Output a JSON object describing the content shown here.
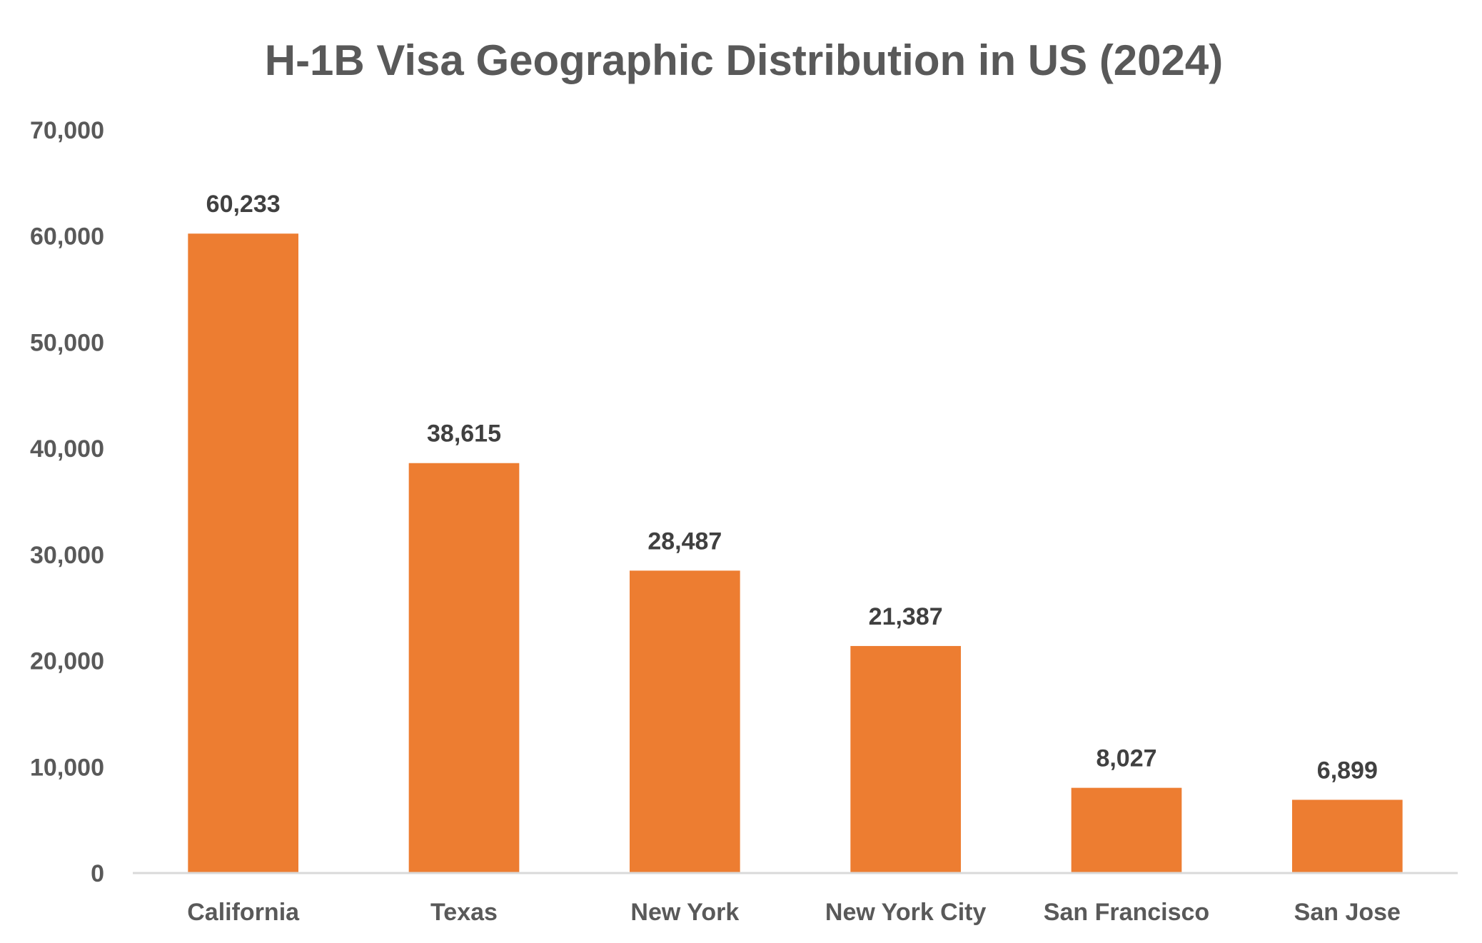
{
  "chart_data": {
    "type": "bar",
    "title": "H-1B Visa Geographic Distribution in US (2024)",
    "xlabel": "",
    "ylabel": "",
    "categories": [
      "California",
      "Texas",
      "New York",
      "New York City",
      "San Francisco",
      "San Jose"
    ],
    "values": [
      60233,
      38615,
      28487,
      21387,
      8027,
      6899
    ],
    "data_labels": [
      "60,233",
      "38,615",
      "28,487",
      "21,387",
      "8,027",
      "6,899"
    ],
    "ylim": [
      0,
      70000
    ],
    "yticks": [
      0,
      10000,
      20000,
      30000,
      40000,
      50000,
      60000,
      70000
    ],
    "ytick_labels": [
      "0",
      "10,000",
      "20,000",
      "30,000",
      "40,000",
      "50,000",
      "60,000",
      "70,000"
    ],
    "grid": false,
    "legend": "none",
    "bar_color": "#ED7D31",
    "axis_color": "#D9D9D9"
  }
}
